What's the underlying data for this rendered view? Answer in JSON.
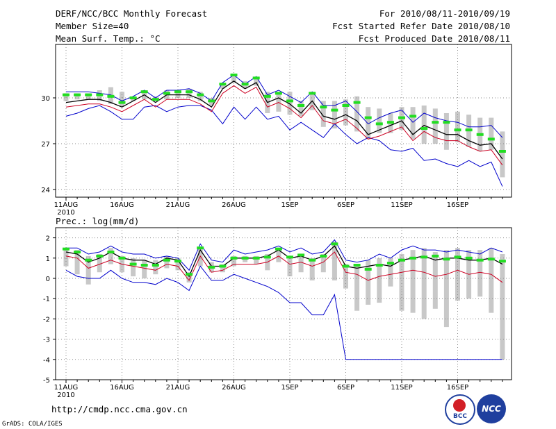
{
  "header": {
    "title": "DERF/NCC/BCC Monthly Forecast",
    "member_size": "Member Size=40",
    "variable1": "Mean Surf. Temp.: °C",
    "period": "For 2010/08/11-2010/09/19",
    "started": "Fcst Started Refer Date 2010/08/10",
    "produced": "Fcst Produced Date 2010/08/11"
  },
  "footer": {
    "url": "http://cmdp.ncc.cma.gov.cn",
    "grads": "GrADS: COLA/IGES",
    "logo1_text": "BCC",
    "logo2_text": "NCC"
  },
  "colors": {
    "upper": "#0000cc",
    "mean": "#000000",
    "lower": "#cc0022",
    "ensemble": "#22dd22",
    "spread": "#c8c8c8",
    "grid": "#888888"
  },
  "chart_data": [
    {
      "type": "line",
      "title": "Mean Surf. Temp.: °C",
      "x_tick_labels": [
        "11AUG",
        "16AUG",
        "21AUG",
        "26AUG",
        "1SEP",
        "6SEP",
        "11SEP",
        "16SEP"
      ],
      "x_year_label": "2010",
      "ylim": [
        23.5,
        33.5
      ],
      "yticks": [
        24,
        27,
        30
      ],
      "series": [
        {
          "name": "max",
          "color": "#0000cc",
          "values": [
            30.4,
            30.4,
            30.4,
            30.3,
            30.2,
            29.8,
            30.1,
            30.5,
            30.0,
            30.5,
            30.5,
            30.6,
            30.3,
            29.8,
            31.0,
            31.5,
            30.9,
            31.4,
            30.2,
            30.5,
            30.1,
            29.7,
            30.4,
            29.5,
            29.5,
            29.8,
            29.1,
            28.3,
            28.7,
            29.0,
            29.2,
            28.4,
            29.0,
            28.7,
            28.5,
            28.4,
            28.1,
            28.1,
            28.2,
            27.4
          ]
        },
        {
          "name": "mean",
          "color": "#000000",
          "values": [
            29.7,
            29.8,
            29.9,
            29.9,
            29.7,
            29.4,
            29.8,
            30.2,
            29.7,
            30.2,
            30.2,
            30.2,
            29.9,
            29.4,
            30.6,
            31.1,
            30.6,
            31.0,
            29.7,
            30.0,
            29.6,
            29.0,
            29.8,
            28.8,
            28.6,
            28.9,
            28.5,
            27.6,
            27.9,
            28.2,
            28.5,
            27.6,
            28.2,
            27.9,
            27.6,
            27.6,
            27.2,
            26.9,
            27.0,
            26.0
          ]
        },
        {
          "name": "min",
          "color": "#cc0022",
          "values": [
            29.4,
            29.5,
            29.6,
            29.6,
            29.4,
            29.1,
            29.5,
            29.9,
            29.4,
            29.9,
            29.9,
            29.9,
            29.6,
            29.1,
            30.3,
            30.8,
            30.3,
            30.7,
            29.4,
            29.7,
            29.3,
            28.7,
            29.5,
            28.5,
            28.3,
            28.6,
            28.0,
            27.3,
            27.5,
            27.8,
            28.1,
            27.2,
            27.8,
            27.4,
            27.2,
            27.2,
            26.8,
            26.5,
            26.6,
            25.6
          ]
        },
        {
          "name": "lowest",
          "color": "#0000cc",
          "values": [
            28.8,
            29.0,
            29.3,
            29.5,
            29.1,
            28.6,
            28.6,
            29.4,
            29.5,
            29.1,
            29.4,
            29.5,
            29.5,
            29.2,
            28.3,
            29.4,
            28.6,
            29.4,
            28.6,
            28.8,
            27.9,
            28.4,
            27.9,
            27.4,
            28.3,
            27.6,
            27.0,
            27.4,
            27.2,
            26.6,
            26.5,
            26.7,
            25.9,
            26.0,
            25.7,
            25.5,
            25.9,
            25.5,
            25.8,
            24.2
          ]
        },
        {
          "name": "ensemble",
          "color": "#22dd22",
          "values": [
            30.2,
            30.2,
            30.2,
            30.2,
            30.1,
            29.7,
            30.0,
            30.4,
            29.9,
            30.3,
            30.4,
            30.4,
            30.2,
            29.8,
            30.9,
            31.5,
            30.9,
            31.3,
            30.1,
            30.3,
            29.8,
            29.5,
            30.3,
            29.4,
            29.2,
            29.5,
            29.7,
            28.7,
            28.3,
            28.4,
            28.7,
            28.8,
            28.0,
            28.4,
            28.4,
            27.9,
            27.9,
            27.6,
            27.3,
            26.5
          ]
        },
        {
          "name": "spread_top",
          "color": "#c8c8c8",
          "values": [
            30.3,
            30.3,
            30.3,
            30.5,
            30.7,
            30.4,
            30.1,
            30.5,
            30.1,
            30.5,
            30.4,
            30.6,
            30.4,
            30.0,
            30.9,
            31.5,
            31.1,
            31.3,
            30.4,
            30.4,
            30.4,
            29.8,
            30.4,
            29.8,
            29.8,
            29.9,
            30.1,
            29.4,
            29.3,
            29.0,
            29.4,
            29.4,
            29.5,
            29.3,
            29.0,
            29.1,
            28.9,
            28.7,
            28.7,
            27.8
          ]
        },
        {
          "name": "spread_bottom",
          "color": "#c8c8c8",
          "values": [
            29.8,
            29.9,
            29.9,
            29.8,
            29.6,
            29.4,
            29.8,
            29.9,
            29.8,
            29.9,
            30.0,
            30.0,
            29.8,
            29.5,
            30.6,
            31.0,
            30.6,
            30.8,
            29.0,
            29.1,
            28.9,
            28.8,
            29.2,
            28.1,
            28.0,
            28.2,
            27.8,
            27.3,
            27.7,
            27.7,
            27.9,
            27.3,
            27.0,
            27.0,
            26.6,
            27.1,
            26.8,
            26.5,
            26.6,
            24.8
          ]
        }
      ]
    },
    {
      "type": "line",
      "title": "Prec.: log(mm/d)",
      "x_tick_labels": [
        "11AUG",
        "16AUG",
        "21AUG",
        "26AUG",
        "1SEP",
        "6SEP",
        "11SEP",
        "16SEP"
      ],
      "x_year_label": "2010",
      "ylim": [
        -5,
        2.5
      ],
      "yticks": [
        -5,
        -4,
        -3,
        -2,
        -1,
        0,
        1,
        2
      ],
      "series": [
        {
          "name": "max",
          "color": "#0000cc",
          "values": [
            1.5,
            1.5,
            1.2,
            1.3,
            1.6,
            1.3,
            1.2,
            1.2,
            1.0,
            1.1,
            1.0,
            0.4,
            1.7,
            0.9,
            0.8,
            1.4,
            1.2,
            1.3,
            1.4,
            1.6,
            1.3,
            1.5,
            1.2,
            1.3,
            1.9,
            0.9,
            0.8,
            0.9,
            1.2,
            1.0,
            1.4,
            1.6,
            1.4,
            1.4,
            1.3,
            1.4,
            1.3,
            1.2,
            1.5,
            1.3
          ]
        },
        {
          "name": "mean",
          "color": "#000000",
          "values": [
            1.3,
            1.2,
            0.8,
            1.0,
            1.3,
            1.0,
            0.9,
            0.9,
            0.7,
            1.0,
            0.9,
            0.1,
            1.4,
            0.6,
            0.6,
            1.0,
            1.0,
            1.0,
            1.1,
            1.4,
            1.0,
            1.1,
            0.9,
            1.1,
            1.6,
            0.6,
            0.5,
            0.6,
            0.7,
            0.6,
            0.9,
            1.0,
            1.1,
            0.9,
            1.0,
            1.0,
            0.9,
            0.9,
            1.0,
            0.7
          ]
        },
        {
          "name": "min",
          "color": "#cc0022",
          "values": [
            1.1,
            1.0,
            0.5,
            0.7,
            0.9,
            0.7,
            0.6,
            0.5,
            0.4,
            0.7,
            0.6,
            -0.1,
            1.1,
            0.3,
            0.4,
            0.7,
            0.7,
            0.7,
            0.8,
            1.1,
            0.7,
            0.8,
            0.6,
            0.8,
            1.3,
            0.3,
            0.2,
            -0.1,
            0.1,
            0.2,
            0.3,
            0.4,
            0.3,
            0.1,
            0.2,
            0.4,
            0.2,
            0.3,
            0.2,
            -0.2
          ]
        },
        {
          "name": "lowest",
          "color": "#0000cc",
          "values": [
            0.4,
            0.1,
            0.0,
            0.0,
            0.4,
            0.0,
            -0.2,
            -0.2,
            -0.3,
            0.0,
            -0.2,
            -0.6,
            0.6,
            -0.1,
            -0.1,
            0.2,
            0.0,
            -0.2,
            -0.4,
            -0.7,
            -1.2,
            -1.2,
            -1.8,
            -1.8,
            -0.8,
            -4.0,
            -4.0,
            -4.0,
            -4.0,
            -4.0,
            -4.0,
            -4.0,
            -4.0,
            -4.0,
            -4.0,
            -4.0,
            -4.0,
            -4.0,
            -4.0,
            -4.0
          ]
        },
        {
          "name": "ensemble",
          "color": "#22dd22",
          "values": [
            1.45,
            1.3,
            0.9,
            1.1,
            1.3,
            1.0,
            0.7,
            0.65,
            0.65,
            0.9,
            0.85,
            0.2,
            1.5,
            0.55,
            0.6,
            1.0,
            1.0,
            1.0,
            1.05,
            1.45,
            1.05,
            1.15,
            0.9,
            1.1,
            1.7,
            0.6,
            0.65,
            0.45,
            0.65,
            0.75,
            0.9,
            1.0,
            1.05,
            1.1,
            0.95,
            1.05,
            1.0,
            0.9,
            0.95,
            0.85
          ]
        },
        {
          "name": "spread_top",
          "color": "#c8c8c8",
          "values": [
            1.5,
            1.4,
            1.1,
            1.2,
            1.5,
            1.1,
            1.0,
            0.9,
            0.9,
            1.1,
            1.0,
            0.3,
            1.5,
            0.8,
            0.7,
            1.1,
            1.1,
            1.1,
            1.2,
            1.5,
            1.1,
            1.2,
            1.0,
            1.2,
            1.8,
            0.7,
            0.7,
            0.9,
            1.0,
            1.0,
            1.2,
            1.4,
            1.5,
            1.3,
            1.4,
            1.5,
            1.4,
            1.4,
            1.5,
            1.2
          ]
        },
        {
          "name": "spread_bottom",
          "color": "#c8c8c8",
          "values": [
            0.6,
            0.2,
            -0.3,
            0.3,
            0.7,
            0.3,
            0.1,
            0.0,
            0.2,
            0.5,
            0.4,
            -0.2,
            0.6,
            0.3,
            0.3,
            0.6,
            0.8,
            0.7,
            0.4,
            0.8,
            0.1,
            0.3,
            -0.1,
            0.3,
            -0.1,
            -0.5,
            -1.6,
            -1.3,
            -1.2,
            -0.4,
            -1.6,
            -1.7,
            -2.0,
            -1.5,
            -2.4,
            -1.1,
            -1.0,
            -0.9,
            -1.7,
            -4.0
          ]
        }
      ]
    }
  ]
}
